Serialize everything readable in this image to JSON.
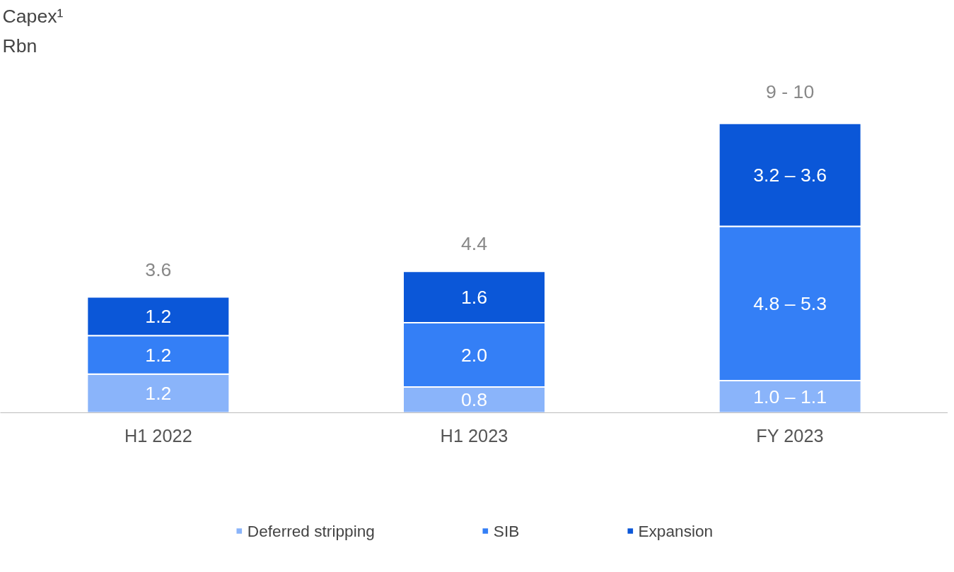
{
  "chart_data": {
    "type": "bar",
    "title": "Capex¹",
    "subtitle": "Rbn",
    "stacked": true,
    "categories": [
      "H1 2022",
      "H1 2023",
      "FY 2023"
    ],
    "series": [
      {
        "name": "Deferred stripping",
        "color": "#8ab4fa",
        "values": [
          1.2,
          0.8,
          1.0
        ],
        "value_labels": [
          "1.2",
          "0.8",
          "1.0 – 1.1"
        ]
      },
      {
        "name": "SIB",
        "color": "#347ff6",
        "values": [
          1.2,
          2.0,
          4.8
        ],
        "value_labels": [
          "1.2",
          "2.0",
          "4.8 – 5.3"
        ]
      },
      {
        "name": "Expansion",
        "color": "#0b57d8",
        "values": [
          1.2,
          1.6,
          3.2
        ],
        "value_labels": [
          "1.2",
          "1.6",
          "3.2 – 3.6"
        ]
      }
    ],
    "totals": [
      "3.6",
      "4.4",
      "9 - 10"
    ],
    "legend": "bottom",
    "grid": false
  }
}
